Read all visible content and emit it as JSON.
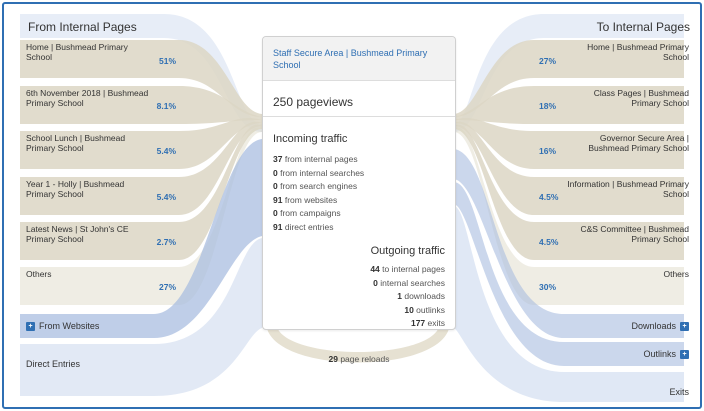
{
  "left_title": "From Internal Pages",
  "right_title": "To Internal Pages",
  "colors": {
    "accent": "#2f6fb3",
    "beige": "#dcd6c4",
    "blue_flow": "#a9bde0",
    "border": "#2f6fb3"
  },
  "incoming_pages": [
    {
      "label": "Home | Bushmead Primary School",
      "pct": "51%"
    },
    {
      "label": "6th November 2018 | Bushmead Primary School",
      "pct": "8.1%"
    },
    {
      "label": "School Lunch | Bushmead Primary School",
      "pct": "5.4%"
    },
    {
      "label": "Year 1 - Holly | Bushmead Primary School",
      "pct": "5.4%"
    },
    {
      "label": "Latest News | St John's CE Primary School",
      "pct": "2.7%"
    },
    {
      "label": "Others",
      "pct": "27%"
    }
  ],
  "from_websites": "From Websites",
  "direct_entries": "Direct Entries",
  "outgoing_pages": [
    {
      "label": "Home | Bushmead Primary School",
      "pct": "27%"
    },
    {
      "label": "Class Pages | Bushmead Primary School",
      "pct": "18%"
    },
    {
      "label": "Governor Secure Area | Bushmead Primary School",
      "pct": "16%"
    },
    {
      "label": "Information | Bushmead Primary School",
      "pct": "4.5%"
    },
    {
      "label": "C&S Committee | Bushmead Primary School",
      "pct": "4.5%"
    },
    {
      "label": "Others",
      "pct": "30%"
    }
  ],
  "downloads": "Downloads",
  "outlinks": "Outlinks",
  "exits": "Exits",
  "card": {
    "title": "Staff Secure Area | Bushmead Primary School",
    "pageviews": "250 pageviews",
    "incoming_title": "Incoming traffic",
    "incoming": [
      {
        "n": "37",
        "t": " from internal pages"
      },
      {
        "n": "0",
        "t": " from internal searches"
      },
      {
        "n": "0",
        "t": " from search engines"
      },
      {
        "n": "91",
        "t": " from websites"
      },
      {
        "n": "0",
        "t": " from campaigns"
      },
      {
        "n": "91",
        "t": " direct entries"
      }
    ],
    "outgoing_title": "Outgoing traffic",
    "outgoing": [
      {
        "n": "44",
        "t": " to internal pages"
      },
      {
        "n": "0",
        "t": " internal searches"
      },
      {
        "n": "1",
        "t": " downloads"
      },
      {
        "n": "10",
        "t": " outlinks"
      },
      {
        "n": "177",
        "t": " exits"
      }
    ]
  },
  "reloads": {
    "n": "29",
    "t": " page reloads"
  }
}
